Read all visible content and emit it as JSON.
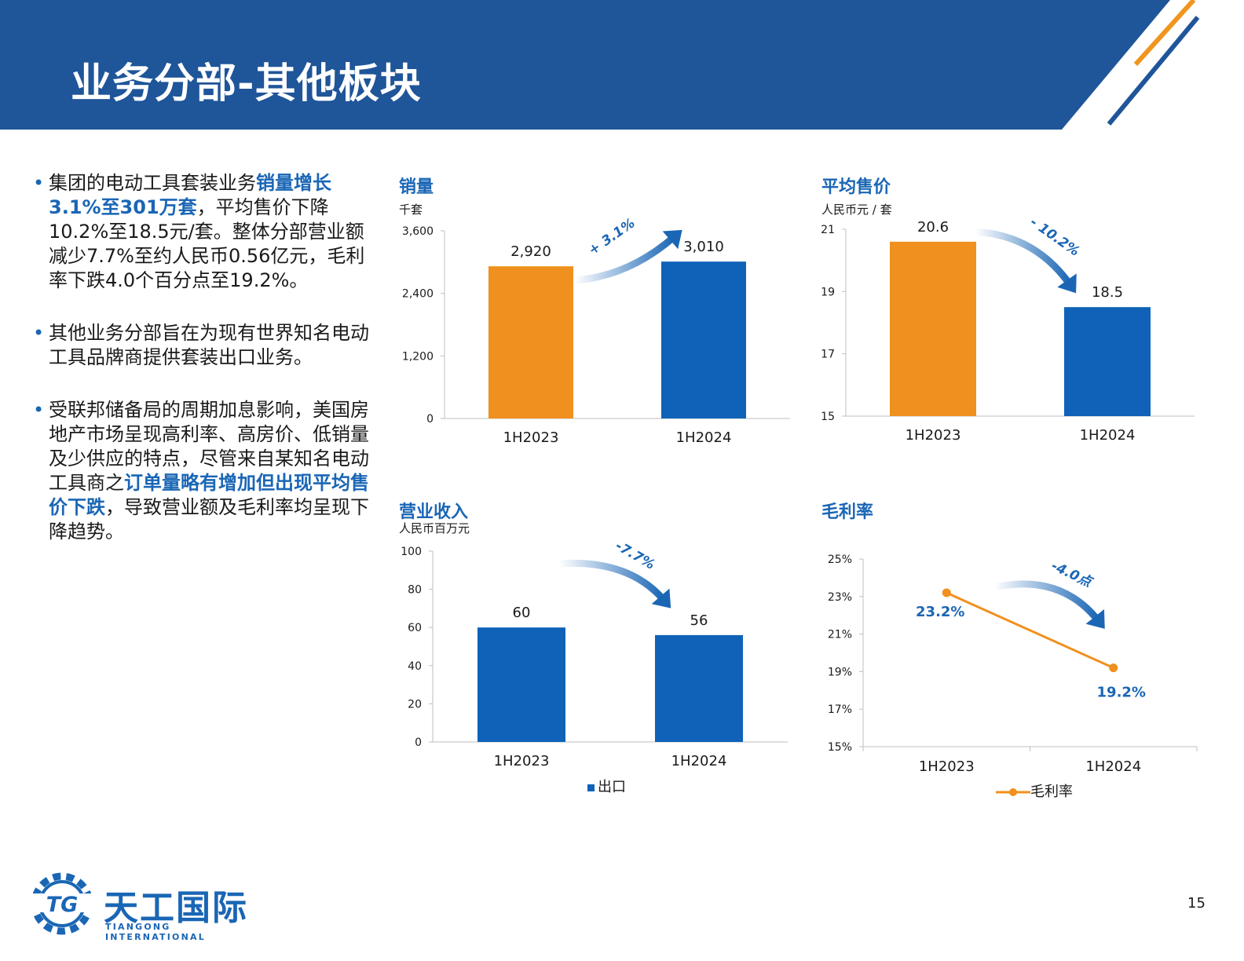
{
  "header": {
    "title": "业务分部-其他板块",
    "band_color": "#1f5599",
    "accent_orange": "#f0951e"
  },
  "bullets": [
    {
      "segments": [
        {
          "text": "集团的电动工具套装业务",
          "highlight": false
        },
        {
          "text": "销量增长3.1%至301万套",
          "highlight": true
        },
        {
          "text": "，平均售价下降10.2%至18.5元/套。整体分部营业额减少7.7%至约人民币0.56亿元，毛利率下跌4.0个百分点至19.2%。",
          "highlight": false
        }
      ]
    },
    {
      "segments": [
        {
          "text": "其他业务分部旨在为现有世界知名电动工具品牌商提供套装出口业务。",
          "highlight": false
        }
      ]
    },
    {
      "segments": [
        {
          "text": "受联邦储备局的周期加息影响，美国房地产市场呈现高利率、高房价、低销量及少供应的特点，尽管来自某知名电动工具商之",
          "highlight": false
        },
        {
          "text": "订单量略有增加但出现平均售价下跌",
          "highlight": true
        },
        {
          "text": "，导致营业额及毛利率均呈现下降趋势。",
          "highlight": false
        }
      ]
    }
  ],
  "chart_data": [
    {
      "type": "bar",
      "title": "销量",
      "unit": "千套",
      "categories": [
        "1H2023",
        "1H2024"
      ],
      "values": [
        2920,
        3010
      ],
      "value_labels": [
        "2,920",
        "3,010"
      ],
      "bar_colors": [
        "#f0901e",
        "#0f62b8"
      ],
      "yticks": [
        "0",
        "1,200",
        "2,400",
        "3,600"
      ],
      "ytick_values": [
        0,
        1200,
        2400,
        3600
      ],
      "ylim": [
        0,
        3600
      ],
      "change_label": "+ 3.1%",
      "change_direction": "up"
    },
    {
      "type": "bar",
      "title": "平均售价",
      "unit": "人民币元 / 套",
      "categories": [
        "1H2023",
        "1H2024"
      ],
      "values": [
        20.6,
        18.5
      ],
      "value_labels": [
        "20.6",
        "18.5"
      ],
      "bar_colors": [
        "#f0901e",
        "#0f62b8"
      ],
      "yticks": [
        "15",
        "17",
        "19",
        "21"
      ],
      "ytick_values": [
        15,
        17,
        19,
        21
      ],
      "ylim": [
        15,
        21
      ],
      "change_label": "- 10.2%",
      "change_direction": "down"
    },
    {
      "type": "bar",
      "title": "营业收入",
      "unit": "人民币百万元",
      "categories": [
        "1H2023",
        "1H2024"
      ],
      "values": [
        60,
        56
      ],
      "value_labels": [
        "60",
        "56"
      ],
      "bar_colors": [
        "#0f62b8",
        "#0f62b8"
      ],
      "yticks": [
        "0",
        "20",
        "40",
        "60",
        "80",
        "100"
      ],
      "ytick_values": [
        0,
        20,
        40,
        60,
        80,
        100
      ],
      "ylim": [
        0,
        100
      ],
      "change_label": "-7.7%",
      "change_direction": "down",
      "legend": [
        "出口"
      ]
    },
    {
      "type": "line",
      "title": "毛利率",
      "categories": [
        "1H2023",
        "1H2024"
      ],
      "values": [
        23.2,
        19.2
      ],
      "value_labels": [
        "23.2%",
        "19.2%"
      ],
      "line_color": "#f0901e",
      "yticks": [
        "15%",
        "17%",
        "19%",
        "21%",
        "23%",
        "25%"
      ],
      "ytick_values": [
        15,
        17,
        19,
        21,
        23,
        25
      ],
      "ylim": [
        15,
        25
      ],
      "change_label": "-4.0点",
      "change_direction": "down",
      "legend": [
        "毛利率"
      ]
    }
  ],
  "logo": {
    "cn": "天工国际",
    "en": "TIANGONG INTERNATIONAL",
    "mark": "TG"
  },
  "page_number": "15"
}
